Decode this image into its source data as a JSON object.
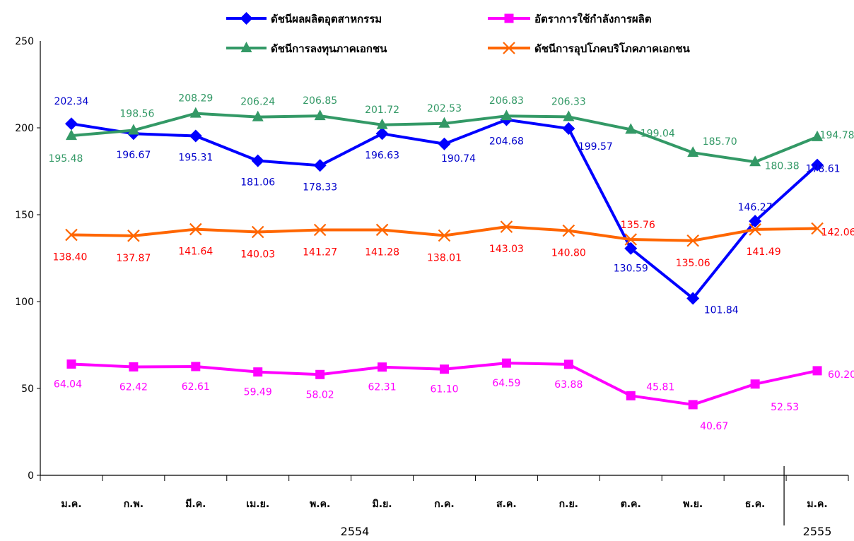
{
  "chart_data": {
    "type": "line",
    "categories": [
      "ม.ค.",
      "ก.พ.",
      "มี.ค.",
      "เม.ย.",
      "พ.ค.",
      "มิ.ย.",
      "ก.ค.",
      "ส.ค.",
      "ก.ย.",
      "ต.ค.",
      "พ.ย.",
      "ธ.ค.",
      "ม.ค."
    ],
    "year_groups": [
      {
        "label": "2554",
        "span": [
          0,
          11
        ]
      },
      {
        "label": "2555",
        "span": [
          12,
          12
        ]
      }
    ],
    "ylabel": "",
    "y_unit_label": "250",
    "ylim": [
      0,
      250
    ],
    "yticks": [
      0,
      50,
      100,
      150,
      200
    ],
    "grid": false,
    "legend_position": "top",
    "series": [
      {
        "name": "ดัชนีผลผลิตอุตสาหกรรม",
        "color": "#0000ff",
        "marker": "diamond",
        "values": [
          202.34,
          196.67,
          195.31,
          181.06,
          178.33,
          196.63,
          190.74,
          204.68,
          199.57,
          130.59,
          101.84,
          146.27,
          178.61
        ]
      },
      {
        "name": "อัตราการใช้กำลังการผลิต",
        "color": "#ff00ff",
        "marker": "square",
        "values": [
          64.04,
          62.42,
          62.61,
          59.49,
          58.02,
          62.31,
          61.1,
          64.59,
          63.88,
          45.81,
          40.67,
          52.53,
          60.2
        ]
      },
      {
        "name": "ดัชนีการลงทุนภาคเอกชน",
        "color": "#339966",
        "marker": "triangle",
        "values": [
          195.48,
          198.56,
          208.29,
          206.24,
          206.85,
          201.72,
          202.53,
          206.83,
          206.33,
          199.04,
          185.7,
          180.38,
          194.78
        ]
      },
      {
        "name": "ดัชนีการอุปโภคบริโภคภาคเอกชน",
        "color": "#ff6600",
        "marker": "x",
        "values": [
          138.4,
          137.87,
          141.64,
          140.03,
          141.27,
          141.28,
          138.01,
          143.03,
          140.8,
          135.76,
          135.06,
          141.49,
          142.06
        ]
      }
    ],
    "label_colors": [
      "#0000cc",
      "#ff00ff",
      "#339966",
      "#ff0000"
    ]
  }
}
